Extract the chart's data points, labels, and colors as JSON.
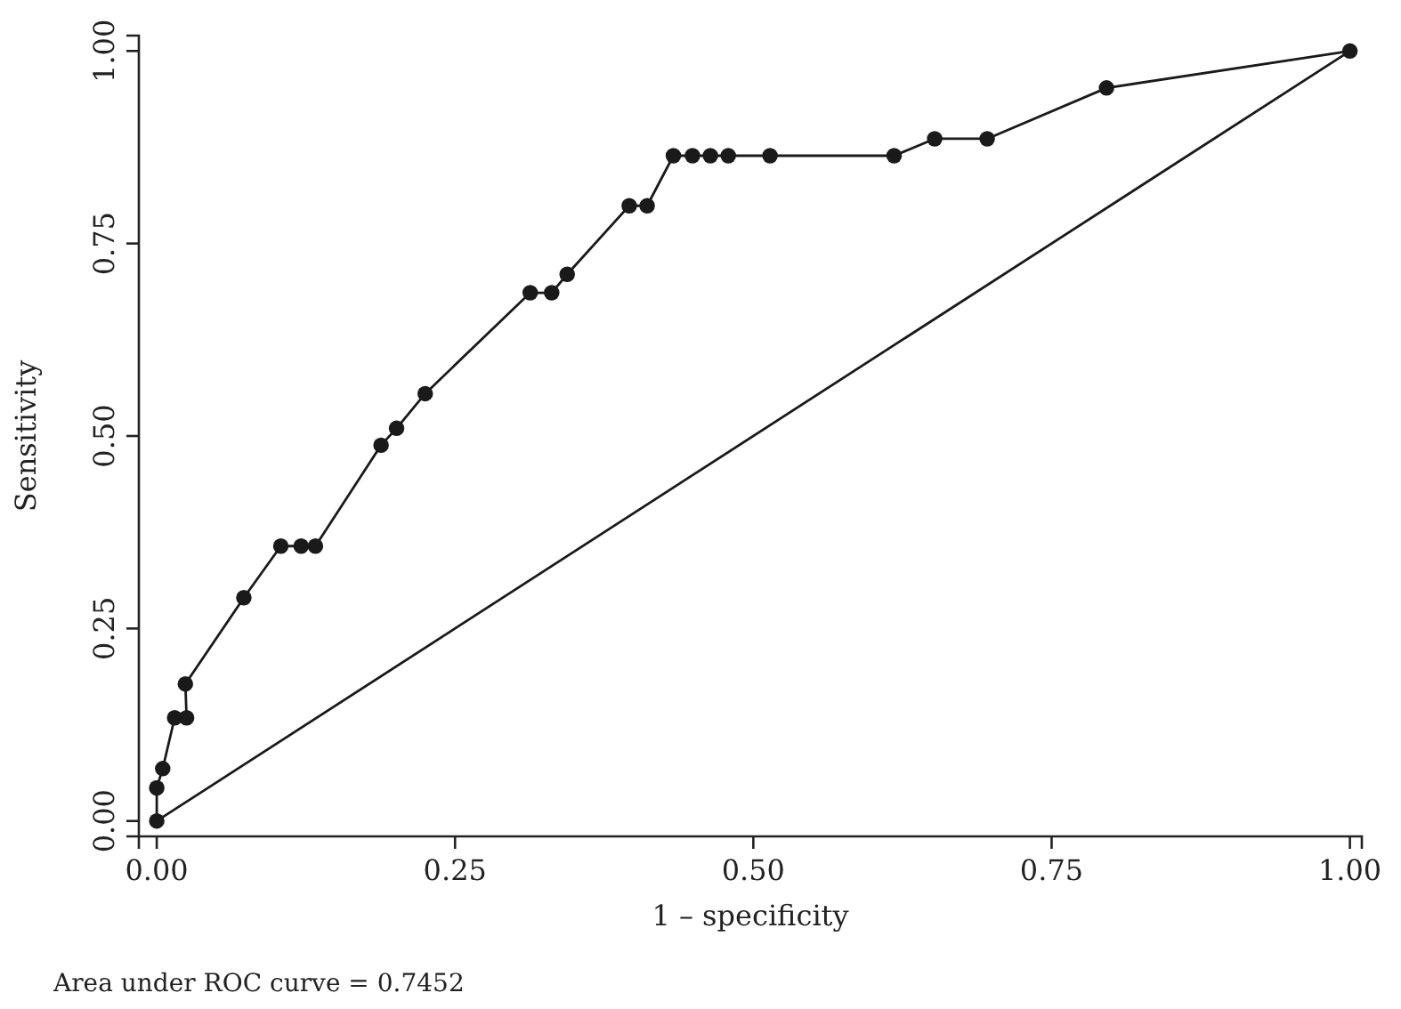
{
  "chart_data": {
    "type": "line",
    "xlabel": "1 – specificity",
    "ylabel": "Sensitivity",
    "xlim": [
      -0.015,
      1.01
    ],
    "ylim": [
      -0.02,
      1.02
    ],
    "xticks": [
      {
        "value": 0,
        "label": "0.00"
      },
      0.25,
      {
        "value": 0.5,
        "label": "0.50"
      },
      0.75,
      {
        "value": 1,
        "label": "1.00"
      }
    ],
    "yticks": [
      {
        "value": 0,
        "label": "0.00"
      },
      0.25,
      {
        "value": 0.5,
        "label": "0.50"
      },
      0.75,
      {
        "value": 1,
        "label": "1.00"
      }
    ],
    "grid": false,
    "annotations": [
      "Area under ROC curve = 0.7452"
    ],
    "series": [
      {
        "color": "#1a1a1a",
        "marker": "circle",
        "x": [
          0,
          0,
          0.005,
          0.015,
          0.025,
          0.024,
          0.073,
          0.104,
          0.121,
          0.133,
          0.188,
          0.201,
          0.225,
          0.313,
          0.331,
          0.344,
          0.396,
          0.411,
          0.433,
          0.449,
          0.464,
          0.479,
          0.514,
          0.618,
          0.652,
          0.696,
          0.796,
          1
        ],
        "values": [
          0,
          0.043,
          0.068,
          0.134,
          0.134,
          0.178,
          0.29,
          0.357,
          0.357,
          0.357,
          0.488,
          0.51,
          0.555,
          0.686,
          0.686,
          0.71,
          0.799,
          0.799,
          0.864,
          0.864,
          0.864,
          0.864,
          0.864,
          0.864,
          0.886,
          0.886,
          0.952,
          1
        ]
      },
      {
        "color": "#1a1a1a",
        "marker": "none",
        "x": [
          0,
          1
        ],
        "values": [
          0,
          1
        ]
      }
    ]
  }
}
